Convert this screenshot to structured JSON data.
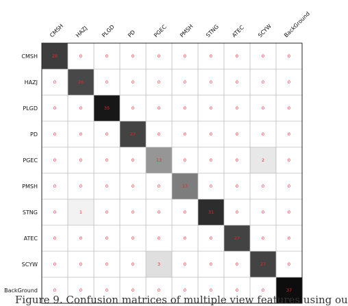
{
  "chart_data": {
    "type": "heatmap",
    "x_labels": [
      "CMSH",
      "HAZJ",
      "PLGD",
      "PD",
      "PGEC",
      "PMSH",
      "STNG",
      "ATEC",
      "SCYW",
      "BackGround"
    ],
    "y_labels": [
      "CMSH",
      "HAZJ",
      "PLGD",
      "PD",
      "PGEC",
      "PMSH",
      "STNG",
      "ATEC",
      "SCYW",
      "BackGround"
    ],
    "values": [
      [
        28,
        0,
        0,
        0,
        0,
        0,
        0,
        0,
        0,
        0
      ],
      [
        0,
        26,
        0,
        0,
        0,
        0,
        0,
        0,
        0,
        0
      ],
      [
        0,
        0,
        35,
        0,
        0,
        0,
        0,
        0,
        0,
        0
      ],
      [
        0,
        0,
        0,
        27,
        0,
        0,
        0,
        0,
        0,
        0
      ],
      [
        0,
        0,
        0,
        0,
        13,
        0,
        0,
        0,
        2,
        0
      ],
      [
        0,
        0,
        0,
        0,
        0,
        17,
        0,
        0,
        0,
        0
      ],
      [
        0,
        1,
        0,
        0,
        0,
        0,
        31,
        0,
        0,
        0
      ],
      [
        0,
        0,
        0,
        0,
        0,
        0,
        0,
        27,
        0,
        0
      ],
      [
        0,
        0,
        0,
        0,
        3,
        0,
        0,
        0,
        27,
        0
      ],
      [
        0,
        0,
        0,
        0,
        0,
        0,
        0,
        0,
        0,
        37
      ]
    ],
    "colormap": "greys",
    "value_text_color": "#e8262a",
    "max_value": 37
  },
  "caption": "Figure 9. Confusion matrices of multiple view features using ou"
}
